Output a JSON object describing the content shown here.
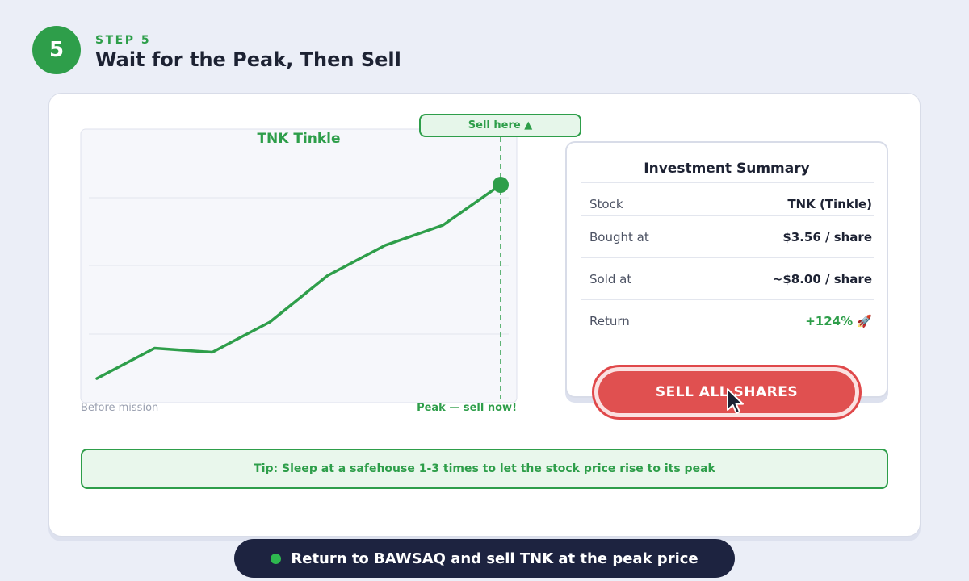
{
  "step": {
    "number": "5",
    "label": "STEP 5",
    "title": "Wait for the Peak, Then Sell"
  },
  "chart": {
    "sell_here_label": "Sell here ▲",
    "title": "TNK Tinkle",
    "left_label": "Before mission",
    "right_label": "Peak — sell now!"
  },
  "chart_data": {
    "type": "line",
    "title": "TNK Tinkle",
    "x": [
      0,
      1,
      2,
      3,
      4,
      5,
      6,
      7
    ],
    "series": [
      {
        "values": [
          0.0,
          0.15,
          0.13,
          0.28,
          0.51,
          0.66,
          0.76,
          0.96
        ]
      }
    ],
    "ylim": [
      0,
      1
    ],
    "grid": true,
    "peak_index": 7
  },
  "summary": {
    "title": "Investment Summary",
    "rows": [
      {
        "key": "Stock",
        "value": "TNK (Tinkle)"
      },
      {
        "key": "Bought at",
        "value": "$3.56 / share"
      },
      {
        "key": "Sold at",
        "value": "~$8.00 / share"
      },
      {
        "key": "Return",
        "value": "+124% 🚀"
      }
    ]
  },
  "sell_button": {
    "label": "SELL ALL SHARES"
  },
  "tip": "Tip: Sleep at a safehouse 1-3 times to let the stock price rise to its peak",
  "banner": "Return to BAWSAQ and sell TNK at the peak price",
  "colors": {
    "accent": "#2e9e4a",
    "danger": "#e05050",
    "banner_bg": "#1d2340"
  }
}
